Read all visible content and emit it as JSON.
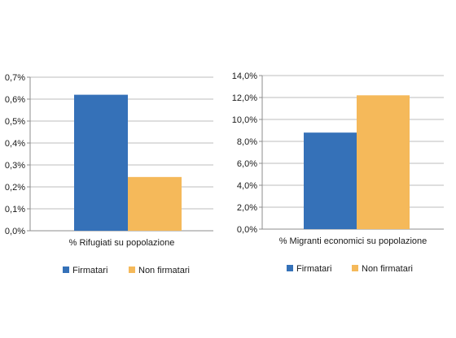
{
  "chart_data": [
    {
      "type": "bar",
      "categories": [
        "% Rifugiati su popolazione"
      ],
      "series": [
        {
          "name": "Firmatari",
          "values": [
            0.62
          ],
          "color": "#3571b8"
        },
        {
          "name": "Non firmatari",
          "values": [
            0.245
          ],
          "color": "#f5b95a"
        }
      ],
      "ylim": [
        0,
        0.7
      ],
      "yticks": [
        0,
        0.1,
        0.2,
        0.3,
        0.4,
        0.5,
        0.6,
        0.7
      ],
      "yticklabels": [
        "0,0%",
        "0,1%",
        "0,2%",
        "0,3%",
        "0,4%",
        "0,5%",
        "0,6%",
        "0,7%"
      ],
      "xlabel": "% Rifugiati su popolazione",
      "grid": true,
      "legend": "bottom"
    },
    {
      "type": "bar",
      "categories": [
        "% Migranti economici su popolazione"
      ],
      "series": [
        {
          "name": "Firmatari",
          "values": [
            8.8
          ],
          "color": "#3571b8"
        },
        {
          "name": "Non firmatari",
          "values": [
            12.2
          ],
          "color": "#f5b95a"
        }
      ],
      "ylim": [
        0,
        14
      ],
      "yticks": [
        0,
        2,
        4,
        6,
        8,
        10,
        12,
        14
      ],
      "yticklabels": [
        "0,0%",
        "2,0%",
        "4,0%",
        "6,0%",
        "8,0%",
        "10,0%",
        "12,0%",
        "14,0%"
      ],
      "xlabel": "% Migranti economici su popolazione",
      "grid": true,
      "legend": "bottom"
    }
  ]
}
